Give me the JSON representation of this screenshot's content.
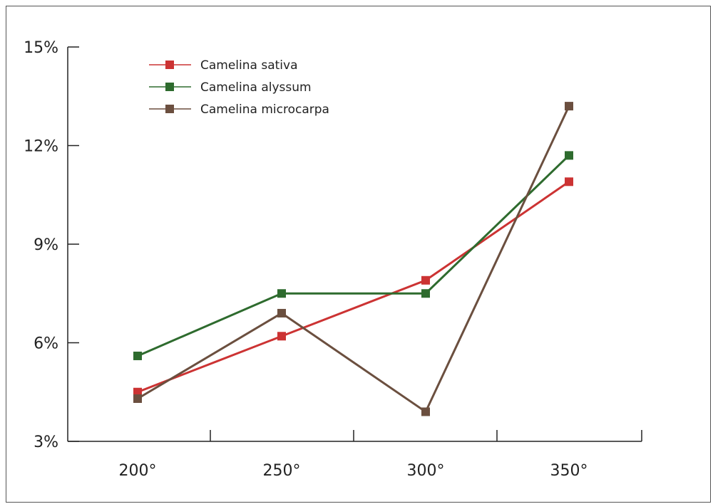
{
  "chart_data": {
    "type": "line",
    "categories": [
      "200°",
      "250°",
      "300°",
      "350°"
    ],
    "x": [
      200,
      250,
      300,
      350
    ],
    "ylim": [
      3,
      15
    ],
    "yticks": [
      3,
      6,
      9,
      12,
      15
    ],
    "ytick_labels": [
      "3%",
      "6%",
      "9%",
      "12%",
      "15%"
    ],
    "xtick_labels": [
      "200°",
      "250°",
      "300°",
      "350°"
    ],
    "title": "",
    "xlabel": "",
    "ylabel": "",
    "legend_position": "top-left",
    "grid": false,
    "series": [
      {
        "name": "Camelina sativa",
        "color": "#cc3333",
        "values": [
          4.5,
          6.2,
          7.9,
          10.9
        ]
      },
      {
        "name": "Camelina alyssum",
        "color": "#2e6b2e",
        "values": [
          5.6,
          7.5,
          7.5,
          11.7
        ]
      },
      {
        "name": "Camelina microcarpa",
        "color": "#6b4f3f",
        "values": [
          4.3,
          6.9,
          3.9,
          13.2
        ]
      }
    ]
  }
}
